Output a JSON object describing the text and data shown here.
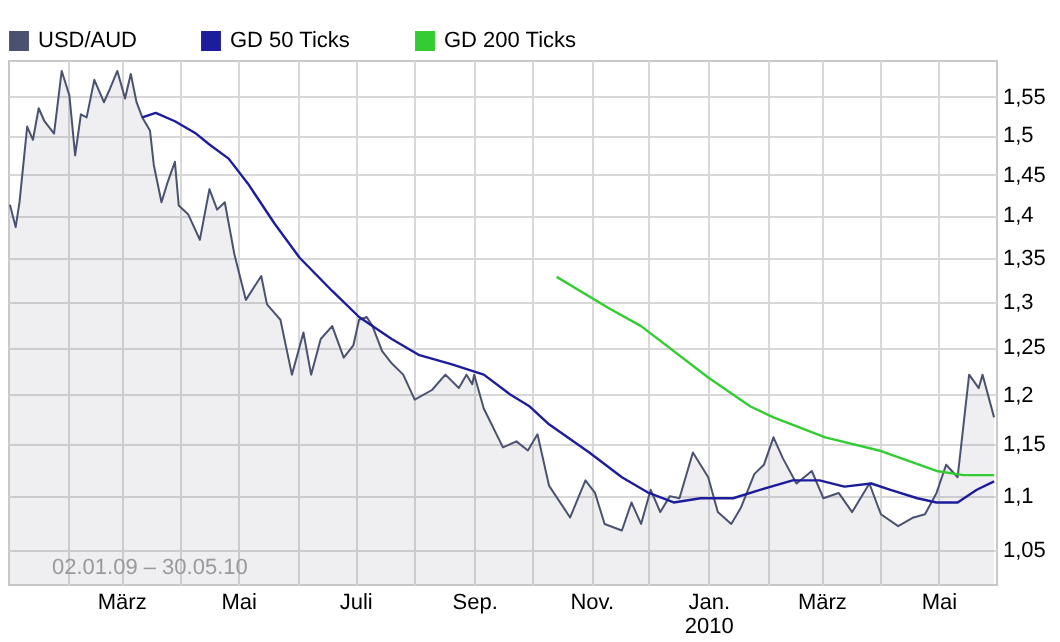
{
  "chart_data": {
    "type": "line",
    "xlim": [
      "2009-01-01",
      "2010-05-31"
    ],
    "xticks": [
      {
        "value": "2009-02-01",
        "label": null
      },
      {
        "value": "2009-03-01",
        "label": "März"
      },
      {
        "value": "2009-04-01",
        "label": null
      },
      {
        "value": "2009-05-01",
        "label": "Mai"
      },
      {
        "value": "2009-06-01",
        "label": null
      },
      {
        "value": "2009-07-01",
        "label": "Juli"
      },
      {
        "value": "2009-08-01",
        "label": null
      },
      {
        "value": "2009-09-01",
        "label": "Sep."
      },
      {
        "value": "2009-10-01",
        "label": null
      },
      {
        "value": "2009-11-01",
        "label": "Nov."
      },
      {
        "value": "2009-12-01",
        "label": null
      },
      {
        "value": "2010-01-01",
        "label": "Jan.\n2010"
      },
      {
        "value": "2010-02-01",
        "label": null
      },
      {
        "value": "2010-03-01",
        "label": "März"
      },
      {
        "value": "2010-04-01",
        "label": null
      },
      {
        "value": "2010-05-01",
        "label": "Mai"
      }
    ],
    "ylim": [
      1.02,
      1.6
    ],
    "yticks": [
      {
        "value": 1.05,
        "label": "1,05"
      },
      {
        "value": 1.1,
        "label": "1,1"
      },
      {
        "value": 1.15,
        "label": "1,15"
      },
      {
        "value": 1.2,
        "label": "1,2"
      },
      {
        "value": 1.25,
        "label": "1,25"
      },
      {
        "value": 1.3,
        "label": "1,3"
      },
      {
        "value": 1.35,
        "label": "1,35"
      },
      {
        "value": 1.4,
        "label": "1,4"
      },
      {
        "value": 1.45,
        "label": "1,45"
      },
      {
        "value": 1.5,
        "label": "1,5"
      },
      {
        "value": 1.55,
        "label": "1,55"
      }
    ],
    "log": "y",
    "grid": true,
    "legend": "top left",
    "annotations": [
      "02.01.09 – 30.05.10"
    ],
    "series": [
      {
        "name": "USD/AUD",
        "type": "area",
        "color": "#4a5270",
        "x": [
          "2009-01-02",
          "2009-01-05",
          "2009-01-07",
          "2009-01-11",
          "2009-01-14",
          "2009-01-17",
          "2009-01-20",
          "2009-01-25",
          "2009-01-29",
          "2009-02-02",
          "2009-02-05",
          "2009-02-08",
          "2009-02-11",
          "2009-02-15",
          "2009-02-20",
          "2009-02-23",
          "2009-02-27",
          "2009-03-03",
          "2009-03-06",
          "2009-03-09",
          "2009-03-12",
          "2009-03-16",
          "2009-03-18",
          "2009-03-22",
          "2009-03-25",
          "2009-03-29",
          "2009-03-31",
          "2009-04-05",
          "2009-04-11",
          "2009-04-16",
          "2009-04-20",
          "2009-04-24",
          "2009-04-29",
          "2009-05-05",
          "2009-05-13",
          "2009-05-16",
          "2009-05-23",
          "2009-05-29",
          "2009-06-04",
          "2009-06-08",
          "2009-06-13",
          "2009-06-19",
          "2009-06-25",
          "2009-06-30",
          "2009-07-03",
          "2009-07-07",
          "2009-07-10",
          "2009-07-15",
          "2009-07-20",
          "2009-07-26",
          "2009-08-01",
          "2009-08-10",
          "2009-08-17",
          "2009-08-24",
          "2009-08-28",
          "2009-08-31",
          "2009-09-01",
          "2009-09-06",
          "2009-09-16",
          "2009-09-23",
          "2009-09-29",
          "2009-10-04",
          "2009-10-10",
          "2009-10-21",
          "2009-10-29",
          "2009-11-03",
          "2009-11-08",
          "2009-11-17",
          "2009-11-22",
          "2009-11-27",
          "2009-12-02",
          "2009-12-07",
          "2009-12-12",
          "2009-12-17",
          "2009-12-24",
          "2010-01-01",
          "2010-01-06",
          "2010-01-13",
          "2010-01-18",
          "2010-01-25",
          "2010-01-30",
          "2010-02-04",
          "2010-02-09",
          "2010-02-16",
          "2010-02-24",
          "2010-03-02",
          "2010-03-10",
          "2010-03-17",
          "2010-03-26",
          "2010-04-01",
          "2010-04-10",
          "2010-04-18",
          "2010-04-24",
          "2010-04-30",
          "2010-05-05",
          "2010-05-11",
          "2010-05-17",
          "2010-05-22",
          "2010-05-24",
          "2010-05-30"
        ],
        "values": [
          1.413,
          1.386,
          1.416,
          1.511,
          1.494,
          1.535,
          1.518,
          1.502,
          1.585,
          1.552,
          1.474,
          1.527,
          1.523,
          1.573,
          1.543,
          1.56,
          1.585,
          1.548,
          1.581,
          1.543,
          1.523,
          1.506,
          1.462,
          1.416,
          1.439,
          1.466,
          1.412,
          1.401,
          1.371,
          1.432,
          1.407,
          1.416,
          1.354,
          1.302,
          1.329,
          1.297,
          1.28,
          1.221,
          1.266,
          1.221,
          1.259,
          1.273,
          1.239,
          1.252,
          1.28,
          1.283,
          1.273,
          1.246,
          1.233,
          1.221,
          1.195,
          1.205,
          1.221,
          1.207,
          1.221,
          1.211,
          1.221,
          1.186,
          1.147,
          1.153,
          1.144,
          1.16,
          1.11,
          1.08,
          1.115,
          1.103,
          1.074,
          1.068,
          1.094,
          1.074,
          1.106,
          1.085,
          1.1,
          1.098,
          1.142,
          1.118,
          1.085,
          1.074,
          1.089,
          1.121,
          1.13,
          1.157,
          1.136,
          1.112,
          1.124,
          1.098,
          1.103,
          1.085,
          1.112,
          1.083,
          1.072,
          1.08,
          1.083,
          1.103,
          1.13,
          1.118,
          1.221,
          1.207,
          1.221,
          1.177
        ]
      },
      {
        "name": "GD 50 Ticks",
        "color": "#1c1c9c",
        "x": [
          "2009-03-12",
          "2009-03-19",
          "2009-03-29",
          "2009-04-09",
          "2009-04-16",
          "2009-04-26",
          "2009-05-06",
          "2009-05-20",
          "2009-06-02",
          "2009-06-19",
          "2009-07-03",
          "2009-07-20",
          "2009-08-03",
          "2009-08-20",
          "2009-09-06",
          "2009-09-20",
          "2009-09-30",
          "2009-10-10",
          "2009-10-31",
          "2009-11-17",
          "2009-12-01",
          "2009-12-14",
          "2009-12-28",
          "2010-01-14",
          "2010-01-28",
          "2010-02-14",
          "2010-02-28",
          "2010-03-13",
          "2010-03-27",
          "2010-04-06",
          "2010-04-20",
          "2010-04-30",
          "2010-05-11",
          "2010-05-21",
          "2010-05-30"
        ],
        "values": [
          1.523,
          1.529,
          1.518,
          1.502,
          1.488,
          1.47,
          1.439,
          1.39,
          1.35,
          1.312,
          1.283,
          1.259,
          1.242,
          1.232,
          1.221,
          1.2,
          1.188,
          1.17,
          1.142,
          1.118,
          1.103,
          1.094,
          1.098,
          1.098,
          1.106,
          1.115,
          1.115,
          1.109,
          1.112,
          1.106,
          1.098,
          1.094,
          1.094,
          1.106,
          1.114
        ]
      },
      {
        "name": "GD 200 Ticks",
        "color": "#33cc33",
        "x": [
          "2009-10-14",
          "2009-11-10",
          "2009-11-27",
          "2010-01-01",
          "2010-01-23",
          "2010-02-04",
          "2010-03-03",
          "2010-03-31",
          "2010-04-30",
          "2010-05-14",
          "2010-05-30"
        ],
        "values": [
          1.328,
          1.293,
          1.273,
          1.218,
          1.188,
          1.177,
          1.157,
          1.144,
          1.124,
          1.12,
          1.12
        ]
      }
    ]
  }
}
